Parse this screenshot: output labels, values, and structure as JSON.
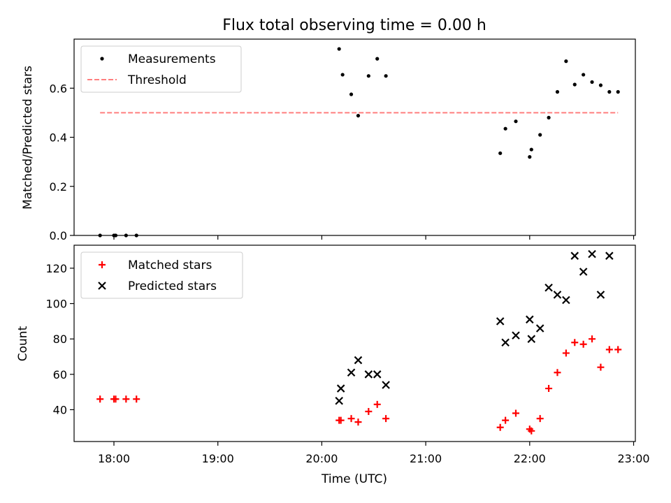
{
  "chart_data": [
    {
      "type": "scatter",
      "title": "Flux total observing time = 0.00 h",
      "xlabel": "",
      "ylabel": "Matched/Predicted stars",
      "ylim": [
        0,
        0.8
      ],
      "yticks": [
        0.0,
        0.2,
        0.4,
        0.6
      ],
      "yticklabels": [
        "0.0",
        "0.2",
        "0.4",
        "0.6"
      ],
      "legend_placement": "upper-left",
      "series": [
        {
          "name": "Measurements",
          "marker": "dot",
          "color": "#000000",
          "x": [
            "17:52",
            "18:00",
            "18:01",
            "18:07",
            "18:13",
            "20:10",
            "20:12",
            "20:17",
            "20:21",
            "20:27",
            "20:32",
            "20:37",
            "21:43",
            "21:46",
            "21:52",
            "22:00",
            "22:01",
            "22:06",
            "22:11",
            "22:16",
            "22:21",
            "22:26",
            "22:31",
            "22:36",
            "22:41",
            "22:46",
            "22:51"
          ],
          "y": [
            0.0,
            0.0,
            0.0,
            0.0,
            0.0,
            0.76,
            0.655,
            0.575,
            0.488,
            0.65,
            0.72,
            0.65,
            0.335,
            0.435,
            0.465,
            0.32,
            0.35,
            0.41,
            0.48,
            0.585,
            0.71,
            0.615,
            0.655,
            0.625,
            0.612,
            0.585,
            0.585
          ]
        },
        {
          "name": "Threshold",
          "style": "dashed",
          "color": "#ff7f7f",
          "x": [
            "17:52",
            "22:51"
          ],
          "y": [
            0.5,
            0.5
          ]
        }
      ]
    },
    {
      "type": "scatter",
      "xlabel": "Time (UTC)",
      "ylabel": "Count",
      "ylim": [
        22,
        133
      ],
      "yticks": [
        40,
        60,
        80,
        100,
        120
      ],
      "yticklabels": [
        "40",
        "60",
        "80",
        "100",
        "120"
      ],
      "xlim": [
        "17:37",
        "23:01"
      ],
      "xticks": [
        "18:00",
        "19:00",
        "20:00",
        "21:00",
        "22:00",
        "23:00"
      ],
      "legend_placement": "upper-left",
      "series": [
        {
          "name": "Matched stars",
          "marker": "plus",
          "color": "#ff0000",
          "x": [
            "17:52",
            "18:00",
            "18:01",
            "18:07",
            "18:13",
            "20:10",
            "20:11",
            "20:17",
            "20:21",
            "20:27",
            "20:32",
            "20:37",
            "21:43",
            "21:46",
            "21:52",
            "22:00",
            "22:01",
            "22:06",
            "22:11",
            "22:16",
            "22:21",
            "22:26",
            "22:31",
            "22:36",
            "22:41",
            "22:46",
            "22:51"
          ],
          "y": [
            46,
            46,
            46,
            46,
            46,
            34,
            34,
            35,
            33,
            39,
            43,
            35,
            30,
            34,
            38,
            29,
            28,
            35,
            52,
            61,
            72,
            78,
            77,
            80,
            64,
            74,
            74
          ]
        },
        {
          "name": "Predicted stars",
          "marker": "x",
          "color": "#000000",
          "x": [
            "20:10",
            "20:11",
            "20:17",
            "20:21",
            "20:27",
            "20:32",
            "20:37",
            "21:43",
            "21:46",
            "21:52",
            "22:00",
            "22:01",
            "22:06",
            "22:11",
            "22:16",
            "22:21",
            "22:26",
            "22:31",
            "22:36",
            "22:41",
            "22:46"
          ],
          "y": [
            45,
            52,
            61,
            68,
            60,
            60,
            54,
            90,
            78,
            82,
            91,
            80,
            86,
            109,
            105,
            102,
            127,
            118,
            128,
            105,
            127
          ]
        }
      ]
    }
  ]
}
